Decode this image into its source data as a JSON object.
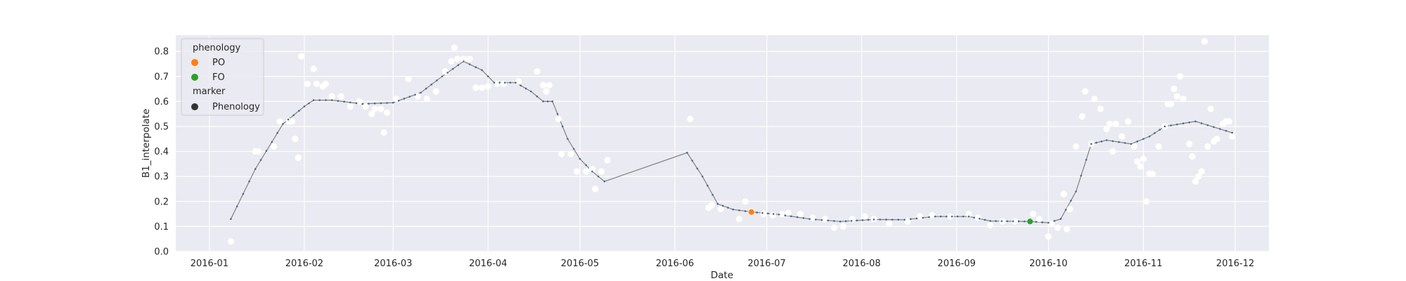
{
  "chart_data": {
    "type": "scatter",
    "xlabel": "Date",
    "ylabel": "B1_interpolate",
    "xlim": [
      "2015-12-21",
      "2016-12-12"
    ],
    "ylim": [
      0.0,
      0.865
    ],
    "grid": true,
    "x_ticks": [
      "2016-01-01",
      "2016-02-01",
      "2016-03-01",
      "2016-04-01",
      "2016-05-01",
      "2016-06-01",
      "2016-07-01",
      "2016-08-01",
      "2016-09-01",
      "2016-10-01",
      "2016-11-01",
      "2016-12-01"
    ],
    "x_tick_labels": [
      "2016-01",
      "2016-02",
      "2016-03",
      "2016-04",
      "2016-05",
      "2016-06",
      "2016-07",
      "2016-08",
      "2016-09",
      "2016-10",
      "2016-11",
      "2016-12"
    ],
    "y_ticks": [
      0.0,
      0.1,
      0.2,
      0.3,
      0.4,
      0.5,
      0.6,
      0.7,
      0.8
    ],
    "y_tick_labels": [
      "0.0",
      "0.1",
      "0.2",
      "0.3",
      "0.4",
      "0.5",
      "0.6",
      "0.7",
      "0.8"
    ],
    "colors": {
      "background": "#eaeaf2",
      "grid": "#ffffff",
      "raw_points": "#ffffff",
      "line": "#808080",
      "line_markers": "#4c6a85",
      "PO": "#ff7f0e",
      "FO": "#2ca02c",
      "marker_legend": "#333333"
    },
    "legend": {
      "placement": "top-left",
      "hue_title": "phenology",
      "entries": [
        {
          "label": "PO",
          "color": "#ff7f0e"
        },
        {
          "label": "FO",
          "color": "#2ca02c"
        }
      ],
      "marker_title": "marker",
      "marker_entries": [
        {
          "label": "Phenology",
          "color": "#333333"
        }
      ]
    },
    "series": [
      {
        "name": "interpolated",
        "kind": "line",
        "points": [
          [
            "2016-01-08",
            0.13
          ],
          [
            "2016-01-16",
            0.33
          ],
          [
            "2016-01-25",
            0.51
          ],
          [
            "2016-02-01",
            0.58
          ],
          [
            "2016-02-04",
            0.605
          ],
          [
            "2016-02-10",
            0.605
          ],
          [
            "2016-02-20",
            0.59
          ],
          [
            "2016-03-01",
            0.595
          ],
          [
            "2016-03-10",
            0.635
          ],
          [
            "2016-03-17",
            0.7
          ],
          [
            "2016-03-24",
            0.76
          ],
          [
            "2016-03-30",
            0.725
          ],
          [
            "2016-04-03",
            0.675
          ],
          [
            "2016-04-10",
            0.675
          ],
          [
            "2016-04-15",
            0.64
          ],
          [
            "2016-04-19",
            0.6
          ],
          [
            "2016-04-22",
            0.6
          ],
          [
            "2016-04-27",
            0.45
          ],
          [
            "2016-05-01",
            0.37
          ],
          [
            "2016-05-05",
            0.32
          ],
          [
            "2016-05-09",
            0.28
          ],
          [
            "2016-06-05",
            0.395
          ],
          [
            "2016-06-10",
            0.3
          ],
          [
            "2016-06-15",
            0.19
          ],
          [
            "2016-06-20",
            0.168
          ],
          [
            "2016-06-26",
            0.158
          ],
          [
            "2016-07-05",
            0.148
          ],
          [
            "2016-07-15",
            0.13
          ],
          [
            "2016-07-25",
            0.12
          ],
          [
            "2016-08-05",
            0.128
          ],
          [
            "2016-08-15",
            0.127
          ],
          [
            "2016-08-25",
            0.14
          ],
          [
            "2016-09-05",
            0.14
          ],
          [
            "2016-09-12",
            0.122
          ],
          [
            "2016-09-25",
            0.12
          ],
          [
            "2016-10-01",
            0.115
          ],
          [
            "2016-10-05",
            0.13
          ],
          [
            "2016-10-10",
            0.24
          ],
          [
            "2016-10-15",
            0.43
          ],
          [
            "2016-10-20",
            0.445
          ],
          [
            "2016-10-28",
            0.43
          ],
          [
            "2016-11-03",
            0.46
          ],
          [
            "2016-11-08",
            0.5
          ],
          [
            "2016-11-18",
            0.52
          ],
          [
            "2016-11-30",
            0.475
          ]
        ]
      },
      {
        "name": "raw",
        "kind": "scatter",
        "points": [
          [
            "2016-01-08",
            0.04
          ],
          [
            "2016-01-16",
            0.4
          ],
          [
            "2016-01-17",
            0.4
          ],
          [
            "2016-01-22",
            0.42
          ],
          [
            "2016-01-24",
            0.52
          ],
          [
            "2016-01-27",
            0.52
          ],
          [
            "2016-01-28",
            0.52
          ],
          [
            "2016-01-29",
            0.45
          ],
          [
            "2016-01-30",
            0.375
          ],
          [
            "2016-01-31",
            0.78
          ],
          [
            "2016-02-02",
            0.67
          ],
          [
            "2016-02-04",
            0.73
          ],
          [
            "2016-02-05",
            0.67
          ],
          [
            "2016-02-07",
            0.66
          ],
          [
            "2016-02-08",
            0.67
          ],
          [
            "2016-02-10",
            0.62
          ],
          [
            "2016-02-13",
            0.62
          ],
          [
            "2016-02-16",
            0.58
          ],
          [
            "2016-02-19",
            0.6
          ],
          [
            "2016-02-21",
            0.58
          ],
          [
            "2016-02-23",
            0.55
          ],
          [
            "2016-02-24",
            0.57
          ],
          [
            "2016-02-26",
            0.57
          ],
          [
            "2016-02-27",
            0.475
          ],
          [
            "2016-02-28",
            0.555
          ],
          [
            "2016-03-02",
            0.61
          ],
          [
            "2016-03-06",
            0.69
          ],
          [
            "2016-03-09",
            0.62
          ],
          [
            "2016-03-12",
            0.61
          ],
          [
            "2016-03-15",
            0.64
          ],
          [
            "2016-03-18",
            0.72
          ],
          [
            "2016-03-20",
            0.76
          ],
          [
            "2016-03-21",
            0.815
          ],
          [
            "2016-03-22",
            0.77
          ],
          [
            "2016-03-24",
            0.77
          ],
          [
            "2016-03-26",
            0.77
          ],
          [
            "2016-03-28",
            0.655
          ],
          [
            "2016-03-30",
            0.655
          ],
          [
            "2016-04-01",
            0.66
          ],
          [
            "2016-04-04",
            0.67
          ],
          [
            "2016-04-06",
            0.67
          ],
          [
            "2016-04-11",
            0.68
          ],
          [
            "2016-04-17",
            0.72
          ],
          [
            "2016-04-19",
            0.665
          ],
          [
            "2016-04-20",
            0.64
          ],
          [
            "2016-04-21",
            0.665
          ],
          [
            "2016-04-24",
            0.53
          ],
          [
            "2016-04-25",
            0.39
          ],
          [
            "2016-04-28",
            0.39
          ],
          [
            "2016-04-30",
            0.32
          ],
          [
            "2016-05-03",
            0.32
          ],
          [
            "2016-05-05",
            0.33
          ],
          [
            "2016-05-06",
            0.25
          ],
          [
            "2016-05-08",
            0.32
          ],
          [
            "2016-05-10",
            0.365
          ],
          [
            "2016-06-06",
            0.53
          ],
          [
            "2016-06-12",
            0.175
          ],
          [
            "2016-06-13",
            0.185
          ],
          [
            "2016-06-16",
            0.17
          ],
          [
            "2016-06-22",
            0.13
          ],
          [
            "2016-06-24",
            0.2
          ],
          [
            "2016-06-26",
            0.16
          ],
          [
            "2016-06-30",
            0.15
          ],
          [
            "2016-07-03",
            0.145
          ],
          [
            "2016-07-06",
            0.15
          ],
          [
            "2016-07-08",
            0.155
          ],
          [
            "2016-07-12",
            0.15
          ],
          [
            "2016-07-16",
            0.135
          ],
          [
            "2016-07-20",
            0.13
          ],
          [
            "2016-07-23",
            0.095
          ],
          [
            "2016-07-26",
            0.1
          ],
          [
            "2016-07-29",
            0.13
          ],
          [
            "2016-08-02",
            0.14
          ],
          [
            "2016-08-05",
            0.13
          ],
          [
            "2016-08-10",
            0.11
          ],
          [
            "2016-08-16",
            0.12
          ],
          [
            "2016-08-20",
            0.14
          ],
          [
            "2016-08-24",
            0.145
          ],
          [
            "2016-08-30",
            0.14
          ],
          [
            "2016-09-05",
            0.15
          ],
          [
            "2016-09-08",
            0.135
          ],
          [
            "2016-09-12",
            0.105
          ],
          [
            "2016-09-16",
            0.12
          ],
          [
            "2016-09-20",
            0.12
          ],
          [
            "2016-09-26",
            0.15
          ],
          [
            "2016-09-28",
            0.13
          ],
          [
            "2016-10-01",
            0.06
          ],
          [
            "2016-10-02",
            0.11
          ],
          [
            "2016-10-04",
            0.095
          ],
          [
            "2016-10-06",
            0.23
          ],
          [
            "2016-10-07",
            0.09
          ],
          [
            "2016-10-08",
            0.17
          ],
          [
            "2016-10-10",
            0.42
          ],
          [
            "2016-10-12",
            0.54
          ],
          [
            "2016-10-13",
            0.64
          ],
          [
            "2016-10-15",
            0.43
          ],
          [
            "2016-10-16",
            0.61
          ],
          [
            "2016-10-18",
            0.57
          ],
          [
            "2016-10-20",
            0.49
          ],
          [
            "2016-10-21",
            0.51
          ],
          [
            "2016-10-22",
            0.4
          ],
          [
            "2016-10-23",
            0.51
          ],
          [
            "2016-10-25",
            0.46
          ],
          [
            "2016-10-27",
            0.52
          ],
          [
            "2016-10-29",
            0.42
          ],
          [
            "2016-10-30",
            0.36
          ],
          [
            "2016-10-31",
            0.34
          ],
          [
            "2016-11-01",
            0.37
          ],
          [
            "2016-11-02",
            0.2
          ],
          [
            "2016-11-03",
            0.31
          ],
          [
            "2016-11-04",
            0.31
          ],
          [
            "2016-11-06",
            0.42
          ],
          [
            "2016-11-08",
            0.5
          ],
          [
            "2016-11-09",
            0.59
          ],
          [
            "2016-11-10",
            0.59
          ],
          [
            "2016-11-11",
            0.65
          ],
          [
            "2016-11-12",
            0.62
          ],
          [
            "2016-11-13",
            0.7
          ],
          [
            "2016-11-14",
            0.61
          ],
          [
            "2016-11-16",
            0.43
          ],
          [
            "2016-11-17",
            0.38
          ],
          [
            "2016-11-18",
            0.28
          ],
          [
            "2016-11-19",
            0.3
          ],
          [
            "2016-11-20",
            0.32
          ],
          [
            "2016-11-21",
            0.84
          ],
          [
            "2016-11-22",
            0.42
          ],
          [
            "2016-11-23",
            0.57
          ],
          [
            "2016-11-24",
            0.44
          ],
          [
            "2016-11-25",
            0.45
          ],
          [
            "2016-11-27",
            0.51
          ],
          [
            "2016-11-28",
            0.52
          ],
          [
            "2016-11-29",
            0.52
          ],
          [
            "2016-11-30",
            0.46
          ]
        ]
      },
      {
        "name": "PO",
        "kind": "phenology",
        "points": [
          [
            "2016-06-26",
            0.158
          ]
        ]
      },
      {
        "name": "FO",
        "kind": "phenology",
        "points": [
          [
            "2016-09-25",
            0.12
          ]
        ]
      }
    ]
  }
}
